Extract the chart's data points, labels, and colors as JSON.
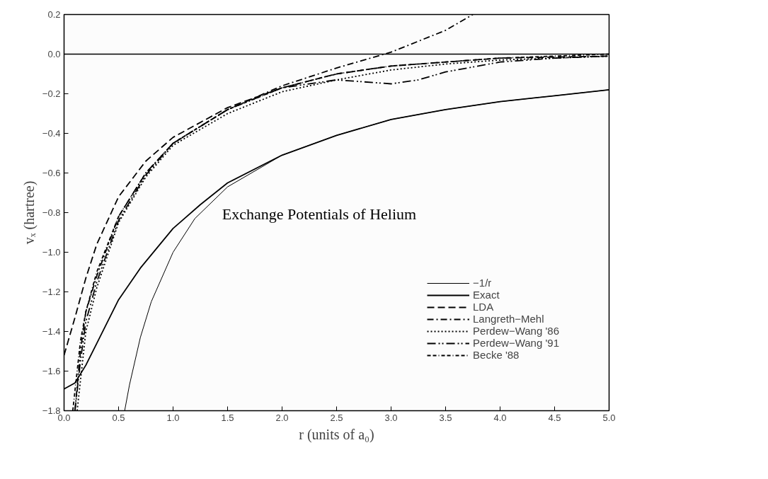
{
  "chart_data": {
    "type": "line",
    "title": "Exchange Potentials of Helium",
    "xlabel": "r (units of a₀)",
    "ylabel": "vₓ (hartree)",
    "xlim": [
      0,
      5
    ],
    "ylim": [
      -1.8,
      0.2
    ],
    "xticks": [
      {
        "value": 0,
        "label": "0.0"
      },
      {
        "value": 0.5,
        "label": "0.5"
      },
      {
        "value": 1,
        "label": "1.0"
      },
      {
        "value": 1.5,
        "label": "1.5"
      },
      {
        "value": 2,
        "label": "2.0"
      },
      {
        "value": 2.5,
        "label": "2.5"
      },
      {
        "value": 3,
        "label": "3.0"
      },
      {
        "value": 3.5,
        "label": "3.5"
      },
      {
        "value": 4,
        "label": "4.0"
      },
      {
        "value": 4.5,
        "label": "4.5"
      },
      {
        "value": 5,
        "label": "5.0"
      }
    ],
    "yticks": [
      {
        "value": -1.8,
        "label": "−1.8"
      },
      {
        "value": -1.6,
        "label": "−1.6"
      },
      {
        "value": -1.4,
        "label": "−1.4"
      },
      {
        "value": -1.2,
        "label": "−1.2"
      },
      {
        "value": -1.0,
        "label": "−1.0"
      },
      {
        "value": -0.8,
        "label": "−0.8"
      },
      {
        "value": -0.6,
        "label": "−0.6"
      },
      {
        "value": -0.4,
        "label": "−0.4"
      },
      {
        "value": -0.2,
        "label": "−0.2"
      },
      {
        "value": 0,
        "label": "0.0"
      },
      {
        "value": 0.2,
        "label": "0.2"
      }
    ],
    "grid": false,
    "legend": "bottom right",
    "ref_lines": [
      {
        "axis": "y",
        "value": 0,
        "color": "#000000",
        "line_style": "solid"
      }
    ],
    "series": [
      {
        "name": "−1/r",
        "color": "#000000",
        "line_style": "solid",
        "x": [
          0.556,
          0.6,
          0.7,
          0.8,
          1.0,
          1.2,
          1.5,
          2.0,
          2.5,
          3.0,
          3.5,
          4.0,
          4.5,
          5.0
        ],
        "values": [
          -1.8,
          -1.67,
          -1.43,
          -1.25,
          -1.0,
          -0.83,
          -0.67,
          -0.51,
          -0.41,
          -0.33,
          -0.28,
          -0.24,
          -0.21,
          -0.18
        ]
      },
      {
        "name": "Exact",
        "color": "#000000",
        "line_style": "solid",
        "x": [
          0,
          0.1,
          0.2,
          0.3,
          0.5,
          0.7,
          1.0,
          1.25,
          1.5,
          2.0,
          2.5,
          3.0,
          3.5,
          4.0,
          4.5,
          5.0
        ],
        "values": [
          -1.69,
          -1.66,
          -1.57,
          -1.46,
          -1.24,
          -1.08,
          -0.88,
          -0.76,
          -0.65,
          -0.51,
          -0.41,
          -0.33,
          -0.28,
          -0.24,
          -0.21,
          -0.18
        ]
      },
      {
        "name": "LDA",
        "color": "#000000",
        "line_style": "dashed",
        "x": [
          0,
          0.1,
          0.2,
          0.3,
          0.5,
          0.75,
          1.0,
          1.5,
          2.0,
          2.5,
          3.0,
          3.5,
          4.0,
          5.0
        ],
        "values": [
          -1.52,
          -1.33,
          -1.13,
          -0.96,
          -0.72,
          -0.54,
          -0.42,
          -0.27,
          -0.17,
          -0.1,
          -0.06,
          -0.04,
          -0.02,
          -0.01
        ]
      },
      {
        "name": "Langreth−Mehl",
        "color": "#000000",
        "line_style": "dashdot",
        "x": [
          0.1,
          0.15,
          0.2,
          0.3,
          0.5,
          0.75,
          1.0,
          1.5,
          2.0,
          2.5,
          3.0,
          3.5,
          3.75
        ],
        "values": [
          -1.8,
          -1.5,
          -1.3,
          -1.12,
          -0.82,
          -0.6,
          -0.45,
          -0.28,
          -0.16,
          -0.07,
          0.01,
          0.12,
          0.2
        ]
      },
      {
        "name": "Perdew−Wang '86",
        "color": "#000000",
        "line_style": "dotted",
        "x": [
          0.12,
          0.2,
          0.3,
          0.5,
          0.75,
          1.0,
          1.5,
          2.0,
          2.5,
          3.0,
          3.5,
          4.0,
          5.0
        ],
        "values": [
          -1.8,
          -1.4,
          -1.18,
          -0.85,
          -0.62,
          -0.46,
          -0.3,
          -0.19,
          -0.13,
          -0.08,
          -0.05,
          -0.03,
          -0.01
        ]
      },
      {
        "name": "Perdew−Wang '91",
        "color": "#000000",
        "line_style": "dashdotdot",
        "x": [
          0.1,
          0.15,
          0.2,
          0.3,
          0.5,
          0.75,
          1.0,
          1.5,
          2.0,
          2.5,
          2.75,
          3.0,
          3.25,
          3.5,
          4.0,
          4.5,
          5.0
        ],
        "values": [
          -1.8,
          -1.55,
          -1.35,
          -1.15,
          -0.84,
          -0.61,
          -0.45,
          -0.28,
          -0.17,
          -0.13,
          -0.14,
          -0.15,
          -0.13,
          -0.09,
          -0.04,
          -0.02,
          -0.01
        ]
      },
      {
        "name": "Becke '88",
        "color": "#000000",
        "line_style": "dashdashdot",
        "x": [
          0.08,
          0.15,
          0.2,
          0.3,
          0.5,
          0.75,
          1.0,
          1.5,
          2.0,
          2.5,
          3.0,
          3.5,
          4.0,
          5.0
        ],
        "values": [
          -1.8,
          -1.45,
          -1.3,
          -1.1,
          -0.82,
          -0.6,
          -0.45,
          -0.28,
          -0.17,
          -0.1,
          -0.06,
          -0.04,
          -0.02,
          0.0
        ]
      }
    ]
  }
}
